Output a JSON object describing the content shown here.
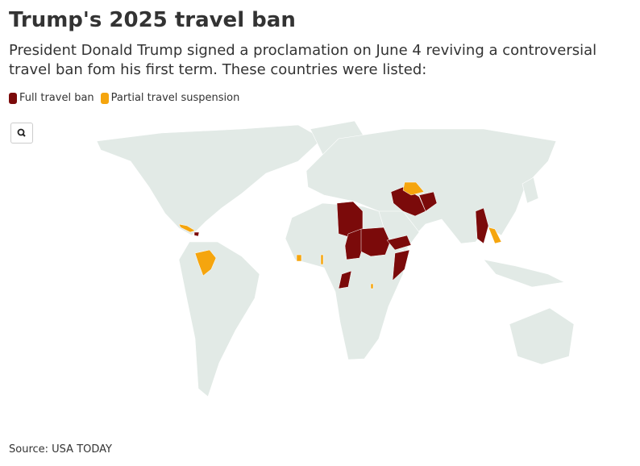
{
  "header": {
    "title": "Trump's 2025 travel ban",
    "subtitle_lines": [
      "President Donald Trump signed a proclamation on June 4 reviving a controversial",
      "travel ban fom his first term. These countries were listed:"
    ]
  },
  "legend": [
    {
      "label": "Full travel ban",
      "color": "#7b0a0a"
    },
    {
      "label": "Partial travel suspension",
      "color": "#f5a50e"
    }
  ],
  "footer": {
    "source": "Source: USA TODAY"
  }
}
